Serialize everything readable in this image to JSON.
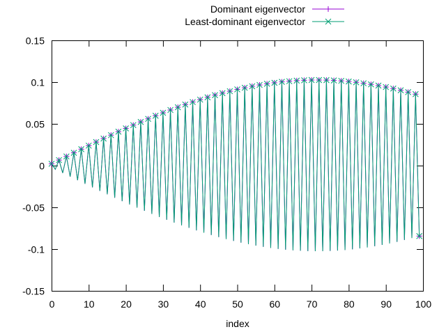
{
  "chart_data": {
    "type": "line",
    "title": "",
    "xlabel": "index",
    "ylabel": "",
    "xlim": [
      0,
      100
    ],
    "ylim": [
      -0.15,
      0.15
    ],
    "x_ticks": [
      0,
      10,
      20,
      30,
      40,
      50,
      60,
      70,
      80,
      90,
      100
    ],
    "y_ticks": [
      -0.15,
      -0.1,
      -0.05,
      0,
      0.05,
      0.1,
      0.15
    ],
    "x_tick_labels": [
      "0",
      "10",
      "20",
      "30",
      "40",
      "50",
      "60",
      "70",
      "80",
      "90",
      "100"
    ],
    "y_tick_labels": [
      "-0.15",
      "-0.1",
      "-0.05",
      "0",
      "0.05",
      "0.1",
      "0.15"
    ],
    "grid": false,
    "legend_position": "top-right",
    "x": [
      0,
      1,
      2,
      3,
      4,
      5,
      6,
      7,
      8,
      9,
      10,
      11,
      12,
      13,
      14,
      15,
      16,
      17,
      18,
      19,
      20,
      21,
      22,
      23,
      24,
      25,
      26,
      27,
      28,
      29,
      30,
      31,
      32,
      33,
      34,
      35,
      36,
      37,
      38,
      39,
      40,
      41,
      42,
      43,
      44,
      45,
      46,
      47,
      48,
      49,
      50,
      51,
      52,
      53,
      54,
      55,
      56,
      57,
      58,
      59,
      60,
      61,
      62,
      63,
      64,
      65,
      66,
      67,
      68,
      69,
      70,
      71,
      72,
      73,
      74,
      75,
      76,
      77,
      78,
      79,
      80,
      81,
      82,
      83,
      84,
      85,
      86,
      87,
      88,
      89,
      90,
      91,
      92,
      93,
      94,
      95,
      96,
      97,
      98,
      99
    ],
    "series": [
      {
        "name": "Dominant eigenvector",
        "color": "#9400d3",
        "marker": "plus",
        "values": [
          0.0022,
          -0.0044,
          0.0066,
          -0.0088,
          0.011,
          -0.0132,
          0.0153,
          -0.0175,
          0.0197,
          -0.0218,
          0.0239,
          -0.0261,
          0.0282,
          -0.0303,
          0.0324,
          -0.0344,
          0.0365,
          -0.0385,
          0.0406,
          -0.0426,
          0.0446,
          -0.0465,
          0.0485,
          -0.0504,
          0.0523,
          -0.0542,
          0.056,
          -0.0579,
          0.0597,
          -0.0615,
          0.0632,
          -0.0649,
          0.0666,
          -0.0683,
          0.0699,
          -0.0715,
          0.0731,
          -0.0746,
          0.0761,
          -0.0776,
          0.079,
          -0.0804,
          0.0818,
          -0.0831,
          0.0844,
          -0.0856,
          0.0868,
          -0.088,
          0.0891,
          -0.0902,
          0.0913,
          -0.0923,
          0.0932,
          -0.0941,
          0.095,
          -0.0958,
          0.0966,
          -0.0973,
          0.098,
          -0.0986,
          0.0992,
          -0.0998,
          0.1003,
          -0.1007,
          0.1011,
          -0.1015,
          0.1018,
          -0.102,
          0.1022,
          -0.1024,
          0.1025,
          -0.1025,
          0.1025,
          -0.1025,
          0.1024,
          -0.1022,
          0.102,
          -0.1018,
          0.1015,
          -0.1011,
          0.1007,
          -0.1003,
          0.0998,
          -0.0992,
          0.0986,
          -0.098,
          0.0973,
          -0.0966,
          0.0958,
          -0.095,
          0.0941,
          -0.0932,
          0.0923,
          -0.0913,
          0.0902,
          -0.0891,
          0.088,
          -0.0868,
          0.0856,
          -0.0844
        ]
      },
      {
        "name": "Least-dominant eigenvector",
        "color": "#009e73",
        "marker": "cross",
        "values": [
          0.0022,
          -0.0044,
          0.0066,
          -0.0088,
          0.011,
          -0.0132,
          0.0153,
          -0.0175,
          0.0197,
          -0.0218,
          0.0239,
          -0.0261,
          0.0282,
          -0.0303,
          0.0324,
          -0.0344,
          0.0365,
          -0.0385,
          0.0406,
          -0.0426,
          0.0446,
          -0.0465,
          0.0485,
          -0.0504,
          0.0523,
          -0.0542,
          0.056,
          -0.0579,
          0.0597,
          -0.0615,
          0.0632,
          -0.0649,
          0.0666,
          -0.0683,
          0.0699,
          -0.0715,
          0.0731,
          -0.0746,
          0.0761,
          -0.0776,
          0.079,
          -0.0804,
          0.0818,
          -0.0831,
          0.0844,
          -0.0856,
          0.0868,
          -0.088,
          0.0891,
          -0.0902,
          0.0913,
          -0.0923,
          0.0932,
          -0.0941,
          0.095,
          -0.0958,
          0.0966,
          -0.0973,
          0.098,
          -0.0986,
          0.0992,
          -0.0998,
          0.1003,
          -0.1007,
          0.1011,
          -0.1015,
          0.1018,
          -0.102,
          0.1022,
          -0.1024,
          0.1025,
          -0.1025,
          0.1025,
          -0.1025,
          0.1024,
          -0.1022,
          0.102,
          -0.1018,
          0.1015,
          -0.1011,
          0.1007,
          -0.1003,
          0.0998,
          -0.0992,
          0.0986,
          -0.098,
          0.0973,
          -0.0966,
          0.0958,
          -0.095,
          0.0941,
          -0.0932,
          0.0923,
          -0.0913,
          0.0902,
          -0.0891,
          0.088,
          -0.0868,
          0.0856,
          -0.0844
        ]
      }
    ]
  }
}
